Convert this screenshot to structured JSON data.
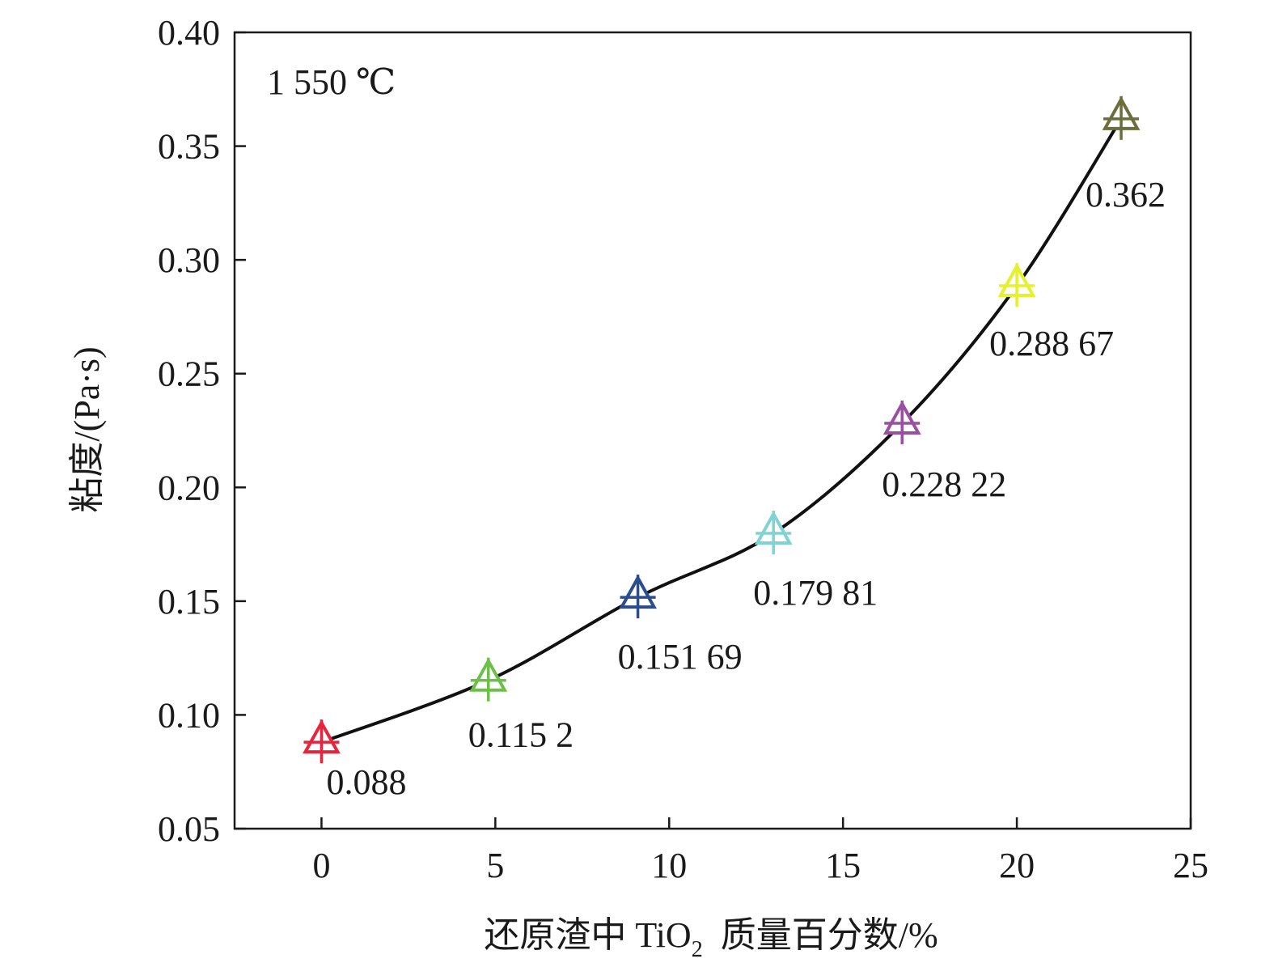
{
  "chart_data": {
    "type": "line",
    "annotation": "1 550 ℃",
    "xlabel_main": "还原渣中 TiO",
    "xlabel_sub": "2",
    "xlabel_tail": "质量百分数/%",
    "ylabel": "粘度/(Pa·s)",
    "xlim": [
      -2.5,
      25
    ],
    "ylim": [
      0.05,
      0.4
    ],
    "x_ticks": [
      0,
      5,
      10,
      15,
      20,
      25
    ],
    "x_tick_labels": [
      "0",
      "5",
      "10",
      "15",
      "20",
      "25"
    ],
    "y_ticks": [
      0.05,
      0.1,
      0.15,
      0.2,
      0.25,
      0.3,
      0.35,
      0.4
    ],
    "y_tick_labels": [
      "0.05",
      "0.10",
      "0.15",
      "0.20",
      "0.25",
      "0.30",
      "0.35",
      "0.40"
    ],
    "grid": false,
    "line_color": "#111111",
    "series": [
      {
        "points": [
          {
            "x": 0,
            "y": 0.088,
            "label": "0.088",
            "color": "#e8243c"
          },
          {
            "x": 4.8,
            "y": 0.1152,
            "label": "0.115 2",
            "color": "#6cc04a"
          },
          {
            "x": 9.1,
            "y": 0.15169,
            "label": "0.151 69",
            "color": "#2a4d8f"
          },
          {
            "x": 13,
            "y": 0.17981,
            "label": "0.179 81",
            "color": "#7fd3d3"
          },
          {
            "x": 16.7,
            "y": 0.22822,
            "label": "0.228 22",
            "color": "#9a4fa3"
          },
          {
            "x": 20,
            "y": 0.28867,
            "label": "0.288 67",
            "color": "#e3f22a"
          },
          {
            "x": 23,
            "y": 0.362,
            "label": "0.362",
            "color": "#6b6e3b"
          }
        ]
      }
    ]
  }
}
